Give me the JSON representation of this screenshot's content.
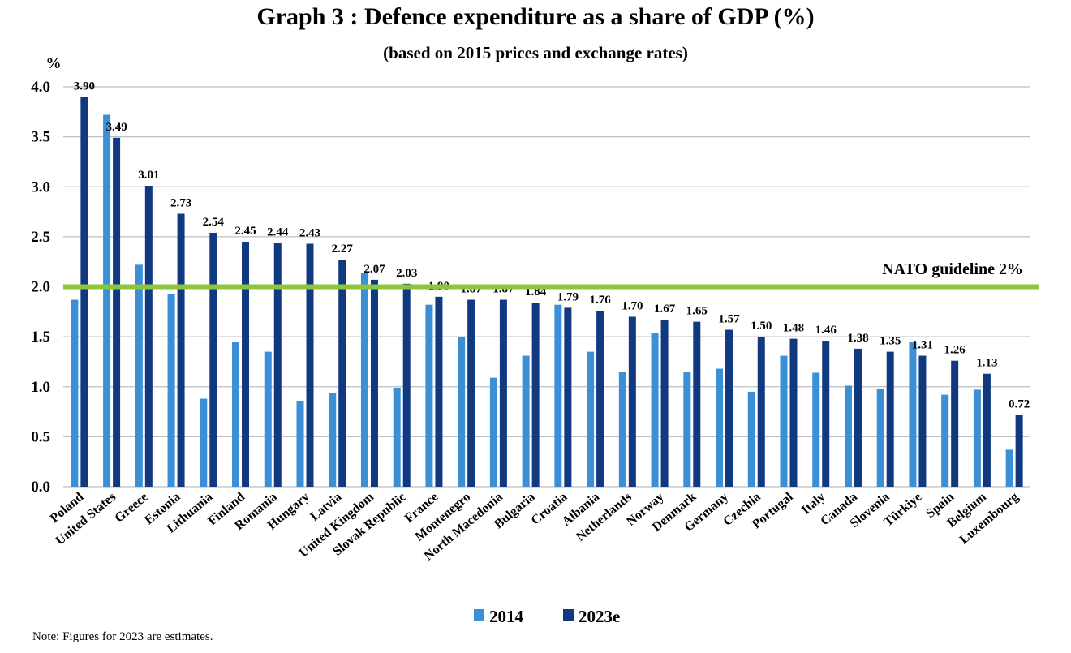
{
  "header": {
    "title": "Graph 3 : Defence expenditure as a share of GDP (%)",
    "subtitle": "(based on 2015 prices and exchange rates)"
  },
  "footer": {
    "note": "Note: Figures for 2023 are estimates."
  },
  "colors": {
    "series_2014": "#3a8fd6",
    "series_2023e": "#11397f",
    "guideline": "#8cc63f",
    "grid": "#bfbfbf"
  },
  "chart_data": {
    "type": "bar",
    "title": "Graph 3 : Defence expenditure as a share of GDP (%)",
    "subtitle": "(based on 2015 prices and exchange rates)",
    "ylabel": "%",
    "xlabel": "",
    "ylim": [
      0,
      4.0
    ],
    "yticks": [
      "0.0",
      "0.5",
      "1.0",
      "1.5",
      "2.0",
      "2.5",
      "3.0",
      "3.5",
      "4.0"
    ],
    "grid": true,
    "legend_position": "bottom",
    "categories": [
      "Poland",
      "United States",
      "Greece",
      "Estonia",
      "Lithuania",
      "Finland",
      "Romania",
      "Hungary",
      "Latvia",
      "United Kingdom",
      "Slovak Republic",
      "France",
      "Montenegro",
      "North Macedonia",
      "Bulgaria",
      "Croatia",
      "Albania",
      "Netherlands",
      "Norway",
      "Denmark",
      "Germany",
      "Czechia",
      "Portugal",
      "Italy",
      "Canada",
      "Slovenia",
      "Türkiye",
      "Spain",
      "Belgium",
      "Luxembourg"
    ],
    "series": [
      {
        "name": "2014",
        "values": [
          1.87,
          3.72,
          2.22,
          1.93,
          0.88,
          1.45,
          1.35,
          0.86,
          0.94,
          2.14,
          0.99,
          1.82,
          1.5,
          1.09,
          1.31,
          1.82,
          1.35,
          1.15,
          1.54,
          1.15,
          1.18,
          0.95,
          1.31,
          1.14,
          1.01,
          0.98,
          1.45,
          0.92,
          0.97,
          0.37
        ]
      },
      {
        "name": "2023e",
        "values": [
          3.9,
          3.49,
          3.01,
          2.73,
          2.54,
          2.45,
          2.44,
          2.43,
          2.27,
          2.07,
          2.03,
          1.9,
          1.87,
          1.87,
          1.84,
          1.79,
          1.76,
          1.7,
          1.67,
          1.65,
          1.57,
          1.5,
          1.48,
          1.46,
          1.38,
          1.35,
          1.31,
          1.26,
          1.13,
          0.72
        ],
        "data_labels": [
          "3.90",
          "3.49",
          "3.01",
          "2.73",
          "2.54",
          "2.45",
          "2.44",
          "2.43",
          "2.27",
          "2.07",
          "2.03",
          "1.90",
          "1.87",
          "1.87",
          "1.84",
          "1.79",
          "1.76",
          "1.70",
          "1.67",
          "1.65",
          "1.57",
          "1.50",
          "1.48",
          "1.46",
          "1.38",
          "1.35",
          "1.31",
          "1.26",
          "1.13",
          "0.72"
        ]
      }
    ],
    "reference_line": {
      "value": 2.0,
      "label": "NATO guideline 2%"
    }
  }
}
